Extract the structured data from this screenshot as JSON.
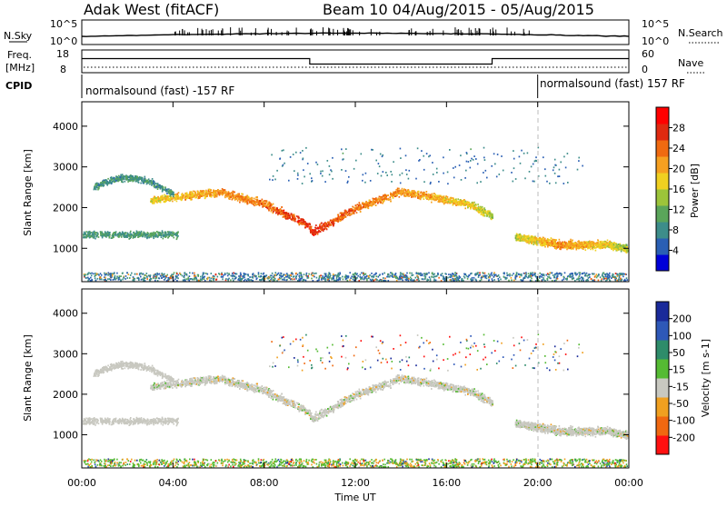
{
  "header": {
    "station": "Adak West (fitACF)",
    "beam": "Beam 10 04/Aug/2015 - 05/Aug/2015"
  },
  "noise_panel": {
    "left_label": "N.Sky",
    "left_ticks": [
      "10^5",
      "10^0"
    ],
    "right_label": "N.Search",
    "right_ticks": [
      "10^5",
      "10^0"
    ]
  },
  "freq_panel": {
    "left_label_1": "Freq.",
    "left_label_2": "[MHz]",
    "left_ticks": [
      "18",
      "8"
    ],
    "right_label": "Nave",
    "right_ticks": [
      "60",
      "0"
    ],
    "freq_mhz_profile": {
      "hours": [
        0,
        10,
        10,
        18,
        18,
        24
      ],
      "mhz": [
        14.2,
        14.2,
        11.8,
        11.8,
        14.2,
        14.2
      ]
    }
  },
  "cpid": {
    "label": "CPID",
    "mode_1": "normalsound (fast) -157 RF",
    "mode_2": "normalsound (fast) 157 RF",
    "switch_hour": 20
  },
  "chart_data": [
    {
      "type": "heatmap",
      "title": "",
      "ylabel": "Slant Range [km]",
      "ylim": [
        180,
        4600
      ],
      "yticks": [
        "1000",
        "2000",
        "3000",
        "4000"
      ],
      "xlim_hours": [
        0,
        24
      ],
      "colorbar": {
        "label": "Power [dB]",
        "ticks": [
          "4",
          "8",
          "12",
          "16",
          "20",
          "24",
          "28"
        ],
        "range": [
          0,
          32
        ]
      },
      "features": [
        {
          "name": "main echo band",
          "hours": [
            3,
            6,
            8,
            9.9,
            10.1,
            12,
            14,
            16,
            17,
            18
          ],
          "range_km": [
            2200,
            2400,
            2100,
            1600,
            1400,
            2000,
            2400,
            2200,
            2100,
            1800
          ],
          "power_db": [
            18,
            22,
            24,
            28,
            28,
            24,
            22,
            20,
            18,
            14
          ]
        },
        {
          "name": "evening sector",
          "hours": [
            19,
            21,
            23,
            24
          ],
          "range_km": [
            1300,
            1100,
            1100,
            1000
          ],
          "power_db": [
            16,
            22,
            18,
            14
          ]
        }
      ]
    },
    {
      "type": "heatmap",
      "title": "",
      "ylabel": "Slant Range [km]",
      "ylim": [
        180,
        4600
      ],
      "yticks": [
        "1000",
        "2000",
        "3000",
        "4000"
      ],
      "xlim_hours": [
        0,
        24
      ],
      "colorbar": {
        "label": "Velocity [m s-1]",
        "ticks": [
          "200",
          "100",
          "50",
          "15",
          "-15",
          "-50",
          "-100",
          "-200"
        ],
        "range": [
          -250,
          250
        ]
      }
    }
  ],
  "xaxis": {
    "label": "Time UT",
    "ticks": [
      "00:00",
      "04:00",
      "08:00",
      "12:00",
      "16:00",
      "20:00",
      "00:00"
    ]
  },
  "colors": {
    "power_scale": [
      "#0000d8",
      "#2a5fb4",
      "#3d8d8a",
      "#5aa55a",
      "#9cc43a",
      "#f0d020",
      "#f6a020",
      "#f06a10",
      "#e02a10",
      "#ff0000"
    ],
    "velocity_scale": [
      "#1a2a9a",
      "#2e58b8",
      "#2e8c6a",
      "#55bb33",
      "#c8c8c0",
      "#f0a020",
      "#f06810",
      "#ff1010"
    ],
    "scatter_grey": "#c8c8c0"
  }
}
